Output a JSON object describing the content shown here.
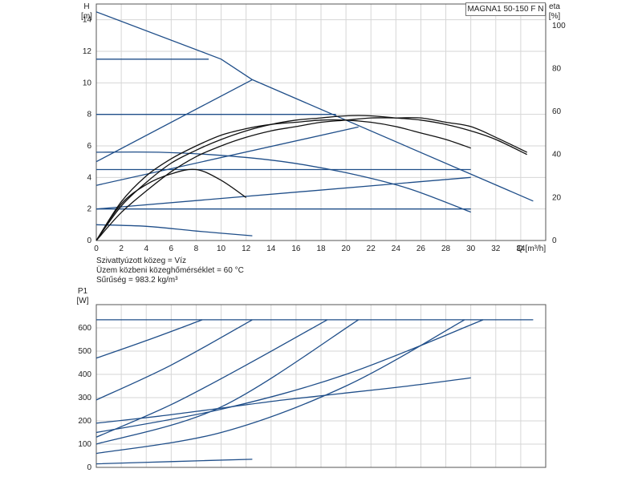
{
  "model": "MAGNA1 50-150 F N",
  "info": {
    "medium": "Szivattyúzott közeg = Víz",
    "temperature": "Üzem közbeni közeghőmérséklet = 60 °C",
    "density": "Sűrűség = 983.2 kg/m³"
  },
  "chart_data": [
    {
      "type": "line",
      "name": "head-efficiency",
      "y_axis_label": [
        "H",
        "[m]"
      ],
      "y2_axis_label": [
        "eta",
        "[%]"
      ],
      "x_axis_label": "Q [m³/h]",
      "xlim": [
        0,
        36
      ],
      "ylim": [
        0,
        15
      ],
      "y2lim": [
        0,
        110
      ],
      "x_ticks": [
        "0",
        "2",
        "4",
        "6",
        "8",
        "10",
        "12",
        "14",
        "16",
        "18",
        "20",
        "22",
        "24",
        "26",
        "28",
        "30",
        "32",
        "34"
      ],
      "y_ticks": [
        "0",
        "2",
        "4",
        "6",
        "8",
        "10",
        "12",
        "14"
      ],
      "y2_ticks": [
        "0",
        "20",
        "40",
        "60",
        "80",
        "100"
      ],
      "grid": true,
      "head_curves": [
        {
          "x": [
            0,
            10,
            12.5
          ],
          "y": [
            14.5,
            11.5,
            10.2
          ]
        },
        {
          "x": [
            12.5,
            35
          ],
          "y": [
            10.2,
            2.5
          ]
        },
        {
          "x": [
            0,
            9
          ],
          "y": [
            11.5,
            11.5
          ]
        },
        {
          "x": [
            0,
            19.2
          ],
          "y": [
            8.0,
            8.0
          ]
        },
        {
          "x": [
            0,
            5,
            10,
            15,
            20,
            25,
            30
          ],
          "y": [
            5.6,
            5.6,
            5.4,
            5.0,
            4.3,
            3.3,
            1.8
          ]
        },
        {
          "x": [
            0,
            30
          ],
          "y": [
            4.5,
            4.5
          ]
        },
        {
          "x": [
            0,
            30
          ],
          "y": [
            2.0,
            2.0
          ]
        },
        {
          "x": [
            0,
            4,
            8,
            12.5
          ],
          "y": [
            1.0,
            0.9,
            0.6,
            0.3
          ]
        },
        {
          "x": [
            0,
            12.5
          ],
          "y": [
            5.0,
            10.2
          ]
        },
        {
          "x": [
            0,
            21
          ],
          "y": [
            3.5,
            7.2
          ]
        },
        {
          "x": [
            0,
            30
          ],
          "y": [
            2.0,
            4.0
          ]
        }
      ],
      "efficiency_curves": [
        {
          "x": [
            0,
            2,
            4,
            6,
            8,
            10,
            12,
            14,
            16,
            18,
            20,
            22,
            24,
            26,
            28,
            30,
            32,
            34.5
          ],
          "y": [
            0,
            13,
            23,
            32,
            39,
            44,
            48,
            51,
            53,
            55,
            56,
            57,
            57,
            57,
            55,
            53,
            48,
            41
          ]
        },
        {
          "x": [
            0,
            2,
            4,
            6,
            8,
            10,
            12,
            14,
            16,
            18,
            20,
            22,
            24,
            26,
            28,
            30,
            32,
            34.5
          ],
          "y": [
            0,
            16,
            27,
            36,
            42,
            47,
            51,
            54,
            56,
            57,
            58,
            58,
            57,
            56,
            54,
            51,
            47,
            40
          ]
        },
        {
          "x": [
            0,
            2,
            4,
            6,
            8,
            10,
            12,
            14,
            16,
            18,
            20,
            22,
            24,
            26,
            28,
            30
          ],
          "y": [
            0,
            18,
            30,
            38,
            44,
            49,
            52,
            54,
            55,
            56,
            56,
            55,
            53,
            50,
            47,
            43
          ]
        },
        {
          "x": [
            0,
            2,
            4,
            6,
            8,
            10,
            12
          ],
          "y": [
            0,
            17,
            26,
            31,
            33,
            28,
            20
          ]
        }
      ]
    },
    {
      "type": "line",
      "name": "power",
      "y_axis_label": [
        "P1",
        "[W]"
      ],
      "xlim": [
        0,
        36
      ],
      "ylim": [
        0,
        700
      ],
      "y_ticks": [
        "0",
        "100",
        "200",
        "300",
        "400",
        "500",
        "600"
      ],
      "grid": true,
      "power_curves": [
        {
          "x": [
            0,
            35
          ],
          "y": [
            635,
            635
          ]
        },
        {
          "x": [
            0,
            5,
            10,
            15,
            20,
            25,
            30
          ],
          "y": [
            190,
            220,
            255,
            290,
            320,
            350,
            385
          ]
        },
        {
          "x": [
            0,
            4,
            8.5
          ],
          "y": [
            470,
            545,
            635
          ]
        },
        {
          "x": [
            0,
            6,
            12.5
          ],
          "y": [
            290,
            440,
            635
          ]
        },
        {
          "x": [
            0,
            6,
            12,
            18.5
          ],
          "y": [
            130,
            270,
            440,
            635
          ]
        },
        {
          "x": [
            0,
            10,
            21
          ],
          "y": [
            100,
            260,
            635
          ]
        },
        {
          "x": [
            0,
            10,
            20,
            29.5
          ],
          "y": [
            60,
            150,
            350,
            635
          ]
        },
        {
          "x": [
            0,
            10,
            20,
            31
          ],
          "y": [
            150,
            250,
            400,
            635
          ]
        },
        {
          "x": [
            0,
            6,
            12.5
          ],
          "y": [
            15,
            25,
            35
          ]
        }
      ]
    }
  ]
}
